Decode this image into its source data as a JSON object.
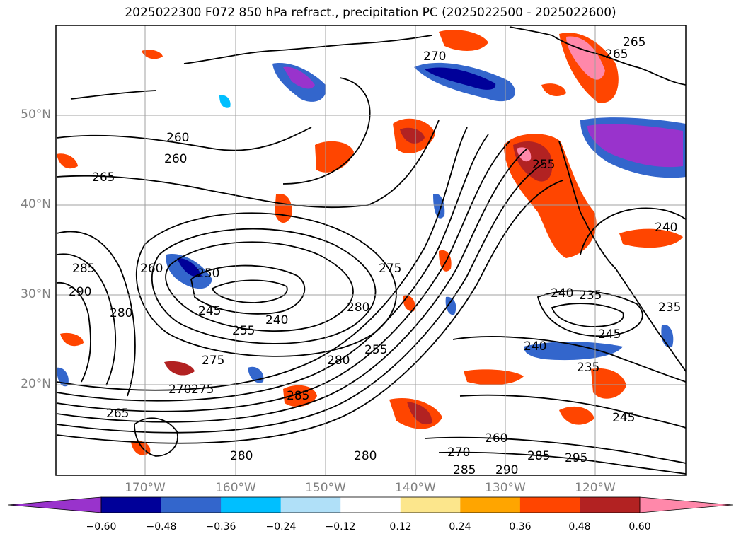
{
  "title": "2025022300 F072 850 hPa refract., precipitation PC (2025022500 - 2025022600)",
  "lat_labels": [
    "50°N",
    "40°N",
    "30°N",
    "20°N"
  ],
  "lon_labels": [
    "170°W",
    "160°W",
    "150°W",
    "140°W",
    "130°W",
    "120°W"
  ],
  "colorbar": {
    "ticks": [
      "−0.60",
      "−0.48",
      "−0.36",
      "−0.24",
      "−0.12",
      "0.12",
      "0.24",
      "0.36",
      "0.48",
      "0.60"
    ],
    "colors": [
      "#9933cc",
      "#000099",
      "#3366cc",
      "#00bfff",
      "#b0e0f8",
      "#ffffff",
      "#fce68c",
      "#ffa500",
      "#ff4500",
      "#b22222",
      "#ff88aa"
    ]
  },
  "contour_labels": [
    "265",
    "265",
    "265",
    "260",
    "260",
    "260",
    "285",
    "290",
    "280",
    "250",
    "245",
    "255",
    "240",
    "275",
    "280",
    "275",
    "280",
    "255",
    "275",
    "285",
    "270",
    "280",
    "240",
    "235",
    "240",
    "245",
    "235",
    "260",
    "245",
    "280",
    "270",
    "290",
    "285",
    "295",
    "285",
    "240",
    "235",
    "255",
    "265",
    "270"
  ]
}
